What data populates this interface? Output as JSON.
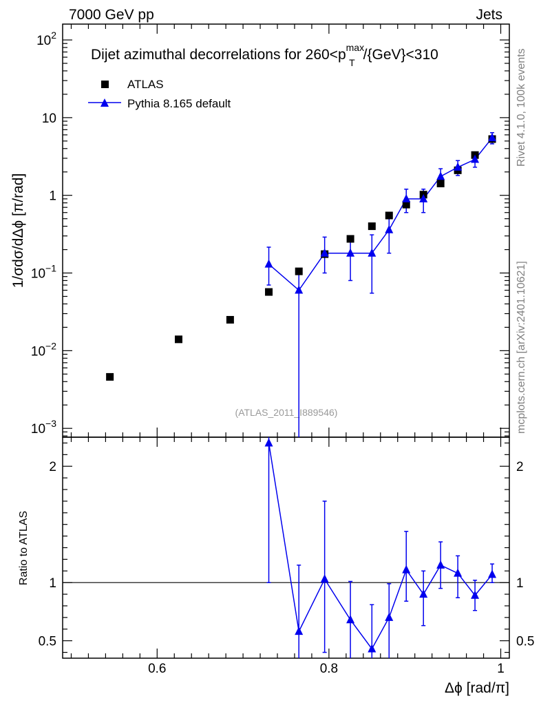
{
  "header": {
    "left": "7000 GeV pp",
    "right": "Jets"
  },
  "side_labels": {
    "rivet": "Rivet 4.1.0,  100k events",
    "mcplots": "mcplots.cern.ch [arXiv:2401.10621]"
  },
  "watermark": "(ATLAS_2011_I889546)",
  "colors": {
    "data": "#000000",
    "mc": "#0000ee",
    "axis": "#000000",
    "watermark": "#999999",
    "side": "#808080"
  },
  "chart_data": [
    {
      "panel": "main",
      "type": "scatter",
      "title": "Dijet azimuthal decorrelations for 260<p_T^max/{GeV}<310",
      "title_parts": {
        "pre": "Dijet azimuthal decorrelations for 260<p",
        "sup": "max",
        "sub": "T",
        "post": "/{GeV}<310"
      },
      "ylabel": "1/σdσ/dΔϕ [π/rad]",
      "yscale": "log",
      "ylim": [
        0.00077,
        160
      ],
      "xlim": [
        0.49,
        1.01
      ],
      "yticks": [
        {
          "value": 100,
          "base": "10",
          "exp": "2"
        },
        {
          "value": 10,
          "text": "10"
        },
        {
          "value": 1,
          "text": "1"
        },
        {
          "value": 0.1,
          "base": "10",
          "exp": "−1"
        },
        {
          "value": 0.01,
          "base": "10",
          "exp": "−2"
        },
        {
          "value": 0.001,
          "base": "10",
          "exp": "−3"
        }
      ],
      "legend": {
        "position": "top-left",
        "entries": [
          "ATLAS",
          "Pythia 8.165 default"
        ]
      },
      "series": [
        {
          "name": "ATLAS",
          "marker": "square",
          "x": [
            0.545,
            0.625,
            0.685,
            0.73,
            0.765,
            0.795,
            0.825,
            0.85,
            0.87,
            0.89,
            0.91,
            0.93,
            0.95,
            0.97,
            0.99
          ],
          "y": [
            0.0046,
            0.014,
            0.025,
            0.057,
            0.105,
            0.175,
            0.275,
            0.4,
            0.55,
            0.76,
            1.02,
            1.42,
            2.1,
            3.3,
            5.3
          ]
        },
        {
          "name": "Pythia 8.165 default",
          "marker": "triangle",
          "x": [
            0.73,
            0.765,
            0.795,
            0.825,
            0.85,
            0.87,
            0.89,
            0.91,
            0.93,
            0.95,
            0.97,
            0.99
          ],
          "y": [
            0.13,
            0.06,
            0.18,
            0.18,
            0.18,
            0.36,
            0.9,
            0.9,
            1.75,
            2.3,
            2.9,
            5.5
          ],
          "err_low": [
            0.06,
            0.06,
            0.08,
            0.1,
            0.125,
            0.18,
            0.3,
            0.3,
            0.45,
            0.5,
            0.6,
            0.9
          ],
          "err_high": [
            0.085,
            0.05,
            0.11,
            0.1,
            0.13,
            0.16,
            0.3,
            0.3,
            0.45,
            0.5,
            0.6,
            0.9
          ]
        }
      ]
    },
    {
      "panel": "ratio",
      "type": "line",
      "ylabel": "Ratio to ATLAS",
      "xlabel": "Δϕ [rad/π]",
      "ylim": [
        0.35,
        2.25
      ],
      "xlim": [
        0.49,
        1.01
      ],
      "yticks": [
        0.5,
        1,
        2
      ],
      "ytick_labels": [
        "0.5",
        "1",
        "2"
      ],
      "xticks": [
        0.6,
        0.8,
        1.0
      ],
      "xtick_labels": [
        "0.6",
        "0.8",
        "1"
      ],
      "reference_line": 1,
      "series": [
        {
          "name": "Pythia 8.165 default",
          "marker": "triangle",
          "x": [
            0.73,
            0.765,
            0.795,
            0.825,
            0.85,
            0.87,
            0.89,
            0.91,
            0.93,
            0.95,
            0.97,
            0.99
          ],
          "y": [
            2.2,
            0.58,
            1.03,
            0.68,
            0.43,
            0.7,
            1.11,
            0.9,
            1.15,
            1.08,
            0.89,
            1.07
          ],
          "err_low": [
            1.2,
            0.58,
            0.63,
            0.68,
            0.43,
            0.7,
            0.27,
            0.27,
            0.2,
            0.21,
            0.13,
            0.07
          ],
          "err_high": [
            1.2,
            0.57,
            0.67,
            0.33,
            0.38,
            0.29,
            0.33,
            0.2,
            0.2,
            0.15,
            0.13,
            0.09
          ]
        }
      ]
    }
  ]
}
